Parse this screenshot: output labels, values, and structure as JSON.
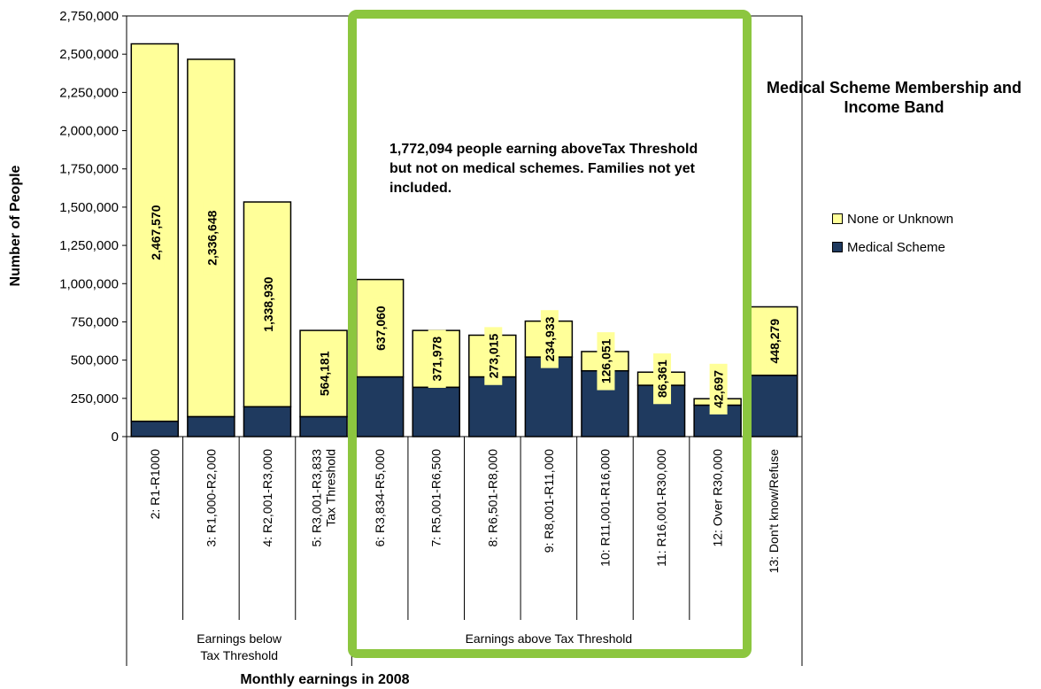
{
  "chart_data": {
    "type": "bar",
    "stacked": true,
    "title": "Medical Scheme Membership and Income Band",
    "xlabel": "Monthly earnings in 2008",
    "ylabel": "Number of People",
    "ylim": [
      0,
      2750000
    ],
    "y_ticks": [
      "0",
      "250,000",
      "500,000",
      "750,000",
      "1,000,000",
      "1,250,000",
      "1,500,000",
      "1,750,000",
      "2,000,000",
      "2,250,000",
      "2,500,000",
      "2,750,000"
    ],
    "categories": [
      [
        "2: R1-R1000"
      ],
      [
        "3: R1,000-R2,000"
      ],
      [
        "4: R2,001-R3,000"
      ],
      [
        "5: R3,001-R3,833",
        "Tax Threshold"
      ],
      [
        "6: R3,834-R5,000"
      ],
      [
        "7: R5,001-R6,500"
      ],
      [
        "8: R6,501-R8,000"
      ],
      [
        "9: R8,001-R11,000"
      ],
      [
        "10: R11,001-R16,000"
      ],
      [
        "11: R16,001-R30,000"
      ],
      [
        "12: Over R30,000"
      ],
      [
        "13: Don't know/Refuse"
      ]
    ],
    "series": [
      {
        "name": "Medical Scheme",
        "color": "#1f3a5f",
        "values": [
          100000,
          130000,
          195000,
          130000,
          390000,
          322000,
          390000,
          520000,
          430000,
          335000,
          205000,
          400000
        ]
      },
      {
        "name": "None or Unknown",
        "color": "#ffff99",
        "values": [
          2467570,
          2336648,
          1338930,
          564181,
          637060,
          371978,
          273015,
          234933,
          126051,
          86361,
          42697,
          448279
        ]
      }
    ],
    "data_labels": [
      "2,467,570",
      "2,336,648",
      "1,338,930",
      "564,181",
      "637,060",
      "371,978",
      "273,015",
      "234,933",
      "126,051",
      "86,361",
      "42,697",
      "448,279"
    ],
    "groups": [
      {
        "lines": [
          "Earnings below",
          "Tax Threshold"
        ],
        "from": 0,
        "to": 3
      },
      {
        "lines": [
          "Earnings above Tax Threshold"
        ],
        "from": 4,
        "to": 10
      }
    ],
    "legend": [
      "None or Unknown",
      "Medical Scheme"
    ],
    "legend_position": "right",
    "annotation": "1,772,094 people earning aboveTax Threshold but not on medical schemes. Families not yet included.",
    "highlight_color": "#8cc63f",
    "grid": false
  }
}
